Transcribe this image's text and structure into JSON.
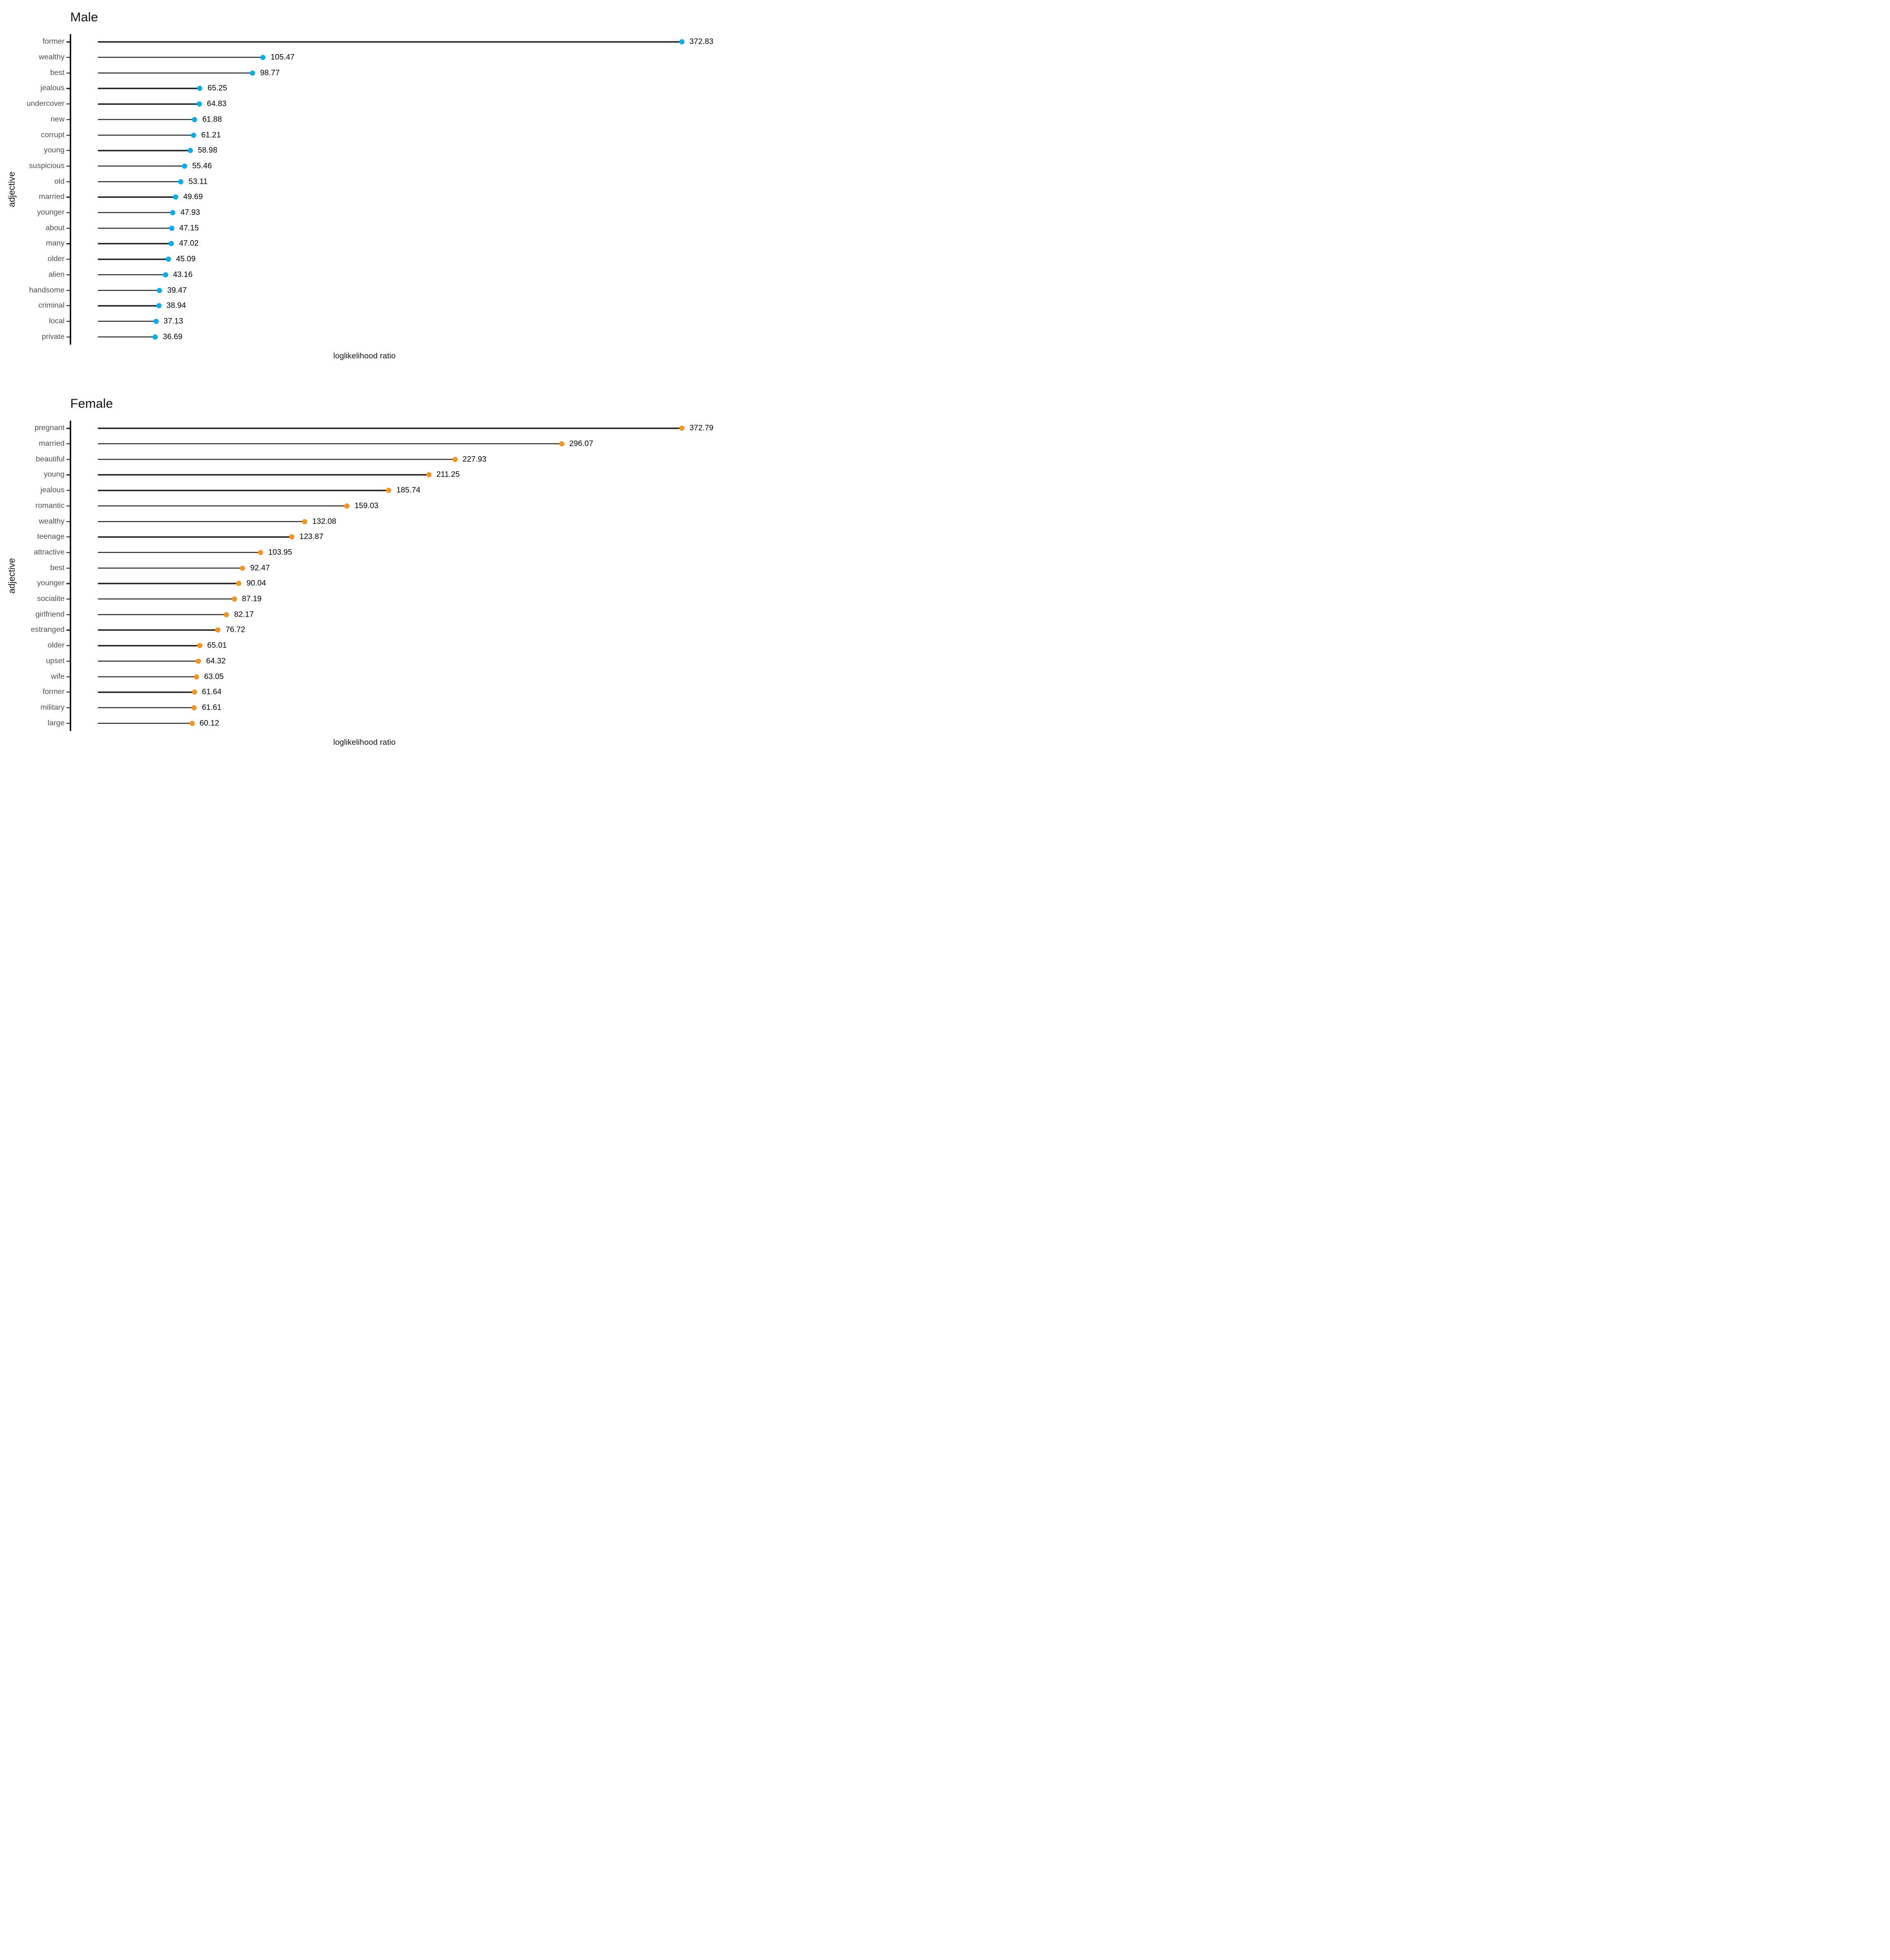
{
  "page": {
    "background": "#FFFFFF"
  },
  "chart_data": [
    {
      "type": "bar",
      "variant": "lollipop-horizontal",
      "title": "Male",
      "xlabel": "loglikelihood ratio",
      "ylabel": "adjective",
      "legend": "none",
      "grid": "off",
      "xlim": [
        0,
        390
      ],
      "dot_color": "#00AEEF",
      "stem_color": "#1C1C1C",
      "axis_color": "#000000",
      "tick_label_color": "#4D4D4D",
      "value_label_color": "#000000",
      "categories": [
        "former",
        "wealthy",
        "best",
        "jealous",
        "undercover",
        "new",
        "corrupt",
        "young",
        "suspicious",
        "old",
        "married",
        "younger",
        "about",
        "many",
        "older",
        "alien",
        "handsome",
        "criminal",
        "local",
        "private"
      ],
      "values": [
        372.83,
        105.47,
        98.77,
        65.25,
        64.83,
        61.88,
        61.21,
        58.98,
        55.46,
        53.11,
        49.69,
        47.93,
        47.15,
        47.02,
        45.09,
        43.16,
        39.47,
        38.94,
        37.13,
        36.69
      ],
      "value_labels": [
        "372.83",
        "105.47",
        "98.77",
        "65.25",
        "64.83",
        "61.88",
        "61.21",
        "58.98",
        "55.46",
        "53.11",
        "49.69",
        "47.93",
        "47.15",
        "47.02",
        "45.09",
        "43.16",
        "39.47",
        "38.94",
        "37.13",
        "36.69"
      ]
    },
    {
      "type": "bar",
      "variant": "lollipop-horizontal",
      "title": "Female",
      "xlabel": "loglikelihood ratio",
      "ylabel": "adjective",
      "legend": "none",
      "grid": "off",
      "xlim": [
        0,
        390
      ],
      "dot_color": "#F7941E",
      "stem_color": "#1C1C1C",
      "axis_color": "#000000",
      "tick_label_color": "#4D4D4D",
      "value_label_color": "#000000",
      "categories": [
        "pregnant",
        "married",
        "beautiful",
        "young",
        "jealous",
        "romantic",
        "wealthy",
        "teenage",
        "attractive",
        "best",
        "younger",
        "socialite",
        "girlfriend",
        "estranged",
        "older",
        "upset",
        "wife",
        "former",
        "military",
        "large"
      ],
      "values": [
        372.79,
        296.07,
        227.93,
        211.25,
        185.74,
        159.03,
        132.08,
        123.87,
        103.95,
        92.47,
        90.04,
        87.19,
        82.17,
        76.72,
        65.01,
        64.32,
        63.05,
        61.64,
        61.61,
        60.12
      ],
      "value_labels": [
        "372.79",
        "296.07",
        "227.93",
        "211.25",
        "185.74",
        "159.03",
        "132.08",
        "123.87",
        "103.95",
        "92.47",
        "90.04",
        "87.19",
        "82.17",
        "76.72",
        "65.01",
        "64.32",
        "63.05",
        "61.64",
        "61.61",
        "60.12"
      ]
    }
  ]
}
